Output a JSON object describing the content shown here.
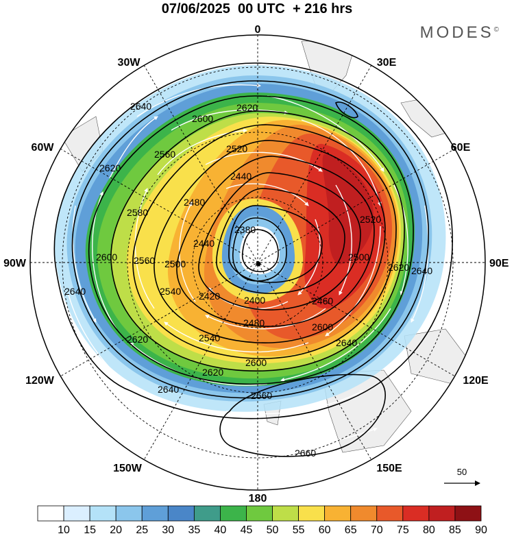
{
  "title": "07/06/2025  00 UTC  + 216 hrs",
  "brand": {
    "name": "MODES",
    "mark": "©"
  },
  "longitude_labels": [
    {
      "id": "0",
      "text": "0"
    },
    {
      "id": "30E",
      "text": "30E"
    },
    {
      "id": "60E",
      "text": "60E"
    },
    {
      "id": "90E",
      "text": "90E"
    },
    {
      "id": "120E",
      "text": "120E"
    },
    {
      "id": "150E",
      "text": "150E"
    },
    {
      "id": "180",
      "text": "180"
    },
    {
      "id": "150W",
      "text": "150W"
    },
    {
      "id": "120W",
      "text": "120W"
    },
    {
      "id": "90W",
      "text": "90W"
    },
    {
      "id": "60W",
      "text": "60W"
    },
    {
      "id": "30W",
      "text": "30W"
    }
  ],
  "contour_labels": [
    "2380",
    "2400",
    "2420",
    "2440",
    "2460",
    "2480",
    "2500",
    "2520",
    "2540",
    "2560",
    "2580",
    "2600",
    "2620",
    "2640",
    "2660"
  ],
  "colorbar": {
    "values": [
      "10",
      "15",
      "20",
      "25",
      "30",
      "35",
      "40",
      "45",
      "50",
      "55",
      "60",
      "65",
      "70",
      "75",
      "80",
      "85",
      "90"
    ],
    "colors": [
      "#ffffff",
      "#dbefff",
      "#b4e2f8",
      "#8bc6ec",
      "#5f9fd8",
      "#4a86c8",
      "#3f9c8a",
      "#3cb44a",
      "#6fc93f",
      "#bede48",
      "#f9e04b",
      "#f8b233",
      "#f08a2d",
      "#e8592a",
      "#da2d24",
      "#c01f20",
      "#8e1115"
    ]
  },
  "vector_scale": {
    "label": "50"
  },
  "land_color": "#eeeeee"
}
